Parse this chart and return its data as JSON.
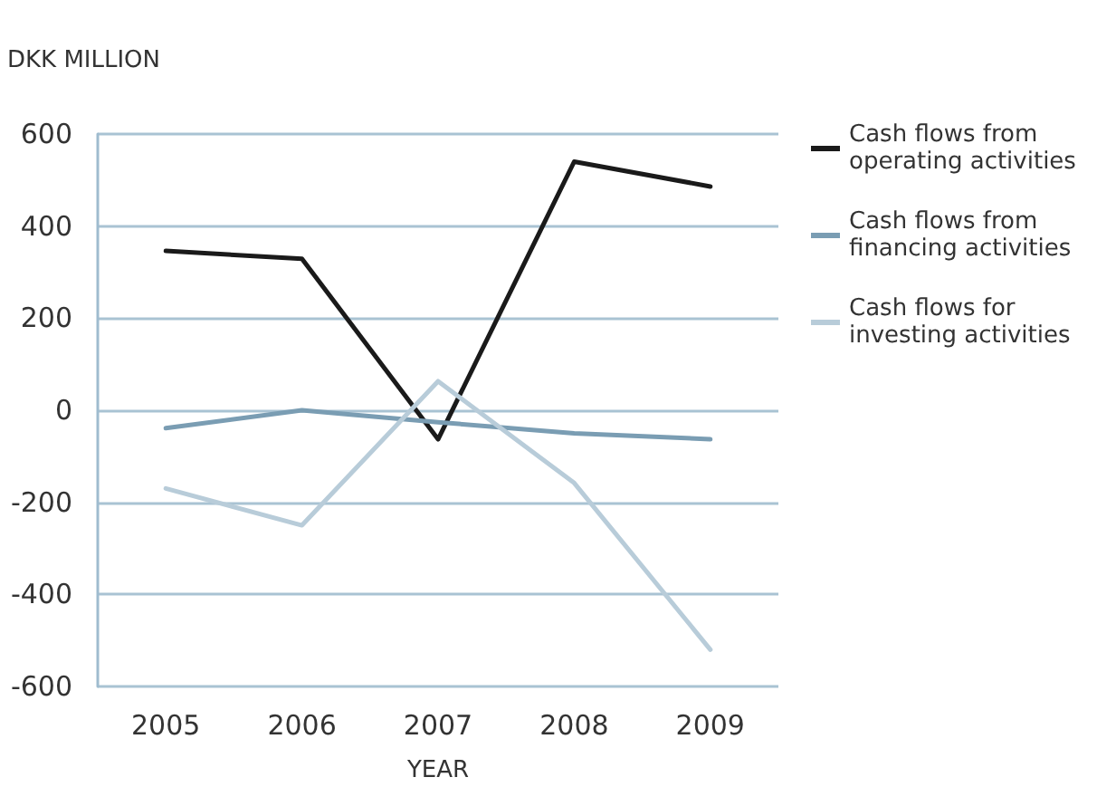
{
  "chart_data": {
    "type": "line",
    "ylabel": "DKK MILLION",
    "xlabel": "YEAR",
    "categories": [
      "2005",
      "2006",
      "2007",
      "2008",
      "2009"
    ],
    "series": [
      {
        "name": "Cash flows from operating activities",
        "color": "#1a1a1a",
        "values": [
          346,
          329,
          -63,
          540,
          486
        ]
      },
      {
        "name": "Cash flows from financing activities",
        "color": "#7a9db3",
        "values": [
          -39,
          0,
          -26,
          -50,
          -63
        ]
      },
      {
        "name": "Cash flows for investing activities",
        "color": "#b8ccd9",
        "values": [
          -170,
          -250,
          63,
          -158,
          -520
        ]
      }
    ],
    "ylim": [
      -600,
      600
    ],
    "yticks": [
      -600,
      -400,
      -200,
      0,
      200,
      400,
      600
    ],
    "grid": "y",
    "legend": "right",
    "marker": "none",
    "line_style": "solid"
  }
}
